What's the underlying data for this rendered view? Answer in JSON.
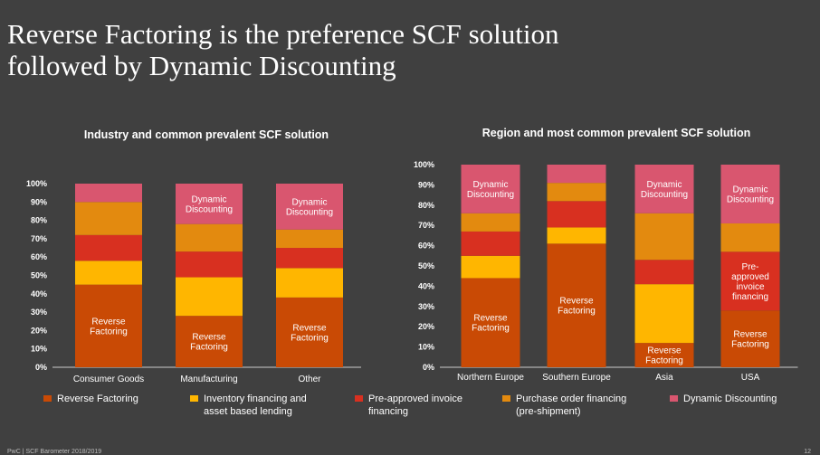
{
  "slide": {
    "title_line1": "Reverse Factoring is the preference SCF solution",
    "title_line2": "followed by Dynamic Discounting",
    "footer": "PwC | SCF Barometer 2018/2019",
    "page": "12"
  },
  "colors": {
    "reverse_factoring": "#C94A05",
    "inventory_financing": "#FFB600",
    "pre_approved": "#D83020",
    "purchase_order": "#E38A0F",
    "dynamic_discounting": "#D9566F",
    "axis": "#cccccc"
  },
  "legend": [
    {
      "key": "reverse_factoring",
      "line1": "Reverse Factoring",
      "line2": ""
    },
    {
      "key": "inventory_financing",
      "line1": "Inventory financing and",
      "line2": "asset based lending"
    },
    {
      "key": "pre_approved",
      "line1": "Pre-approved invoice",
      "line2": "financing"
    },
    {
      "key": "purchase_order",
      "line1": "Purchase order financing",
      "line2": "(pre-shipment)"
    },
    {
      "key": "dynamic_discounting",
      "line1": "Dynamic Discounting",
      "line2": ""
    }
  ],
  "chart_data": [
    {
      "type": "bar",
      "stacked": true,
      "title": "Industry and common prevalent SCF solution",
      "ylim": [
        0,
        100
      ],
      "yticks": [
        "0%",
        "10%",
        "20%",
        "30%",
        "40%",
        "50%",
        "60%",
        "70%",
        "80%",
        "90%",
        "100%"
      ],
      "categories": [
        "Consumer Goods",
        "Manufacturing",
        "Other"
      ],
      "series": [
        {
          "name": "Reverse Factoring",
          "key": "reverse_factoring",
          "values": [
            45,
            28,
            38
          ]
        },
        {
          "name": "Inventory financing and asset based lending",
          "key": "inventory_financing",
          "values": [
            13,
            21,
            16
          ]
        },
        {
          "name": "Pre-approved invoice financing",
          "key": "pre_approved",
          "values": [
            14,
            14,
            11
          ]
        },
        {
          "name": "Purchase order financing (pre-shipment)",
          "key": "purchase_order",
          "values": [
            18,
            15,
            10
          ]
        },
        {
          "name": "Dynamic Discounting",
          "key": "dynamic_discounting",
          "values": [
            10,
            22,
            25
          ]
        }
      ],
      "annotations": [
        {
          "category": 0,
          "series": 0,
          "lines": [
            "Reverse",
            "Factoring"
          ]
        },
        {
          "category": 1,
          "series": 0,
          "lines": [
            "Reverse",
            "Factoring"
          ]
        },
        {
          "category": 2,
          "series": 0,
          "lines": [
            "Reverse",
            "Factoring"
          ]
        },
        {
          "category": 1,
          "series": 4,
          "lines": [
            "Dynamic",
            "Discounting"
          ]
        },
        {
          "category": 2,
          "series": 4,
          "lines": [
            "Dynamic",
            "Discounting"
          ]
        }
      ]
    },
    {
      "type": "bar",
      "stacked": true,
      "title": "Region and most common prevalent SCF solution",
      "ylim": [
        0,
        100
      ],
      "yticks": [
        "0%",
        "10%",
        "20%",
        "30%",
        "40%",
        "50%",
        "60%",
        "70%",
        "80%",
        "90%",
        "100%"
      ],
      "categories": [
        "Northern Europe",
        "Southern Europe",
        "Asia",
        "USA"
      ],
      "series": [
        {
          "name": "Reverse Factoring",
          "key": "reverse_factoring",
          "values": [
            44,
            61,
            12,
            28
          ]
        },
        {
          "name": "Inventory financing and asset based lending",
          "key": "inventory_financing",
          "values": [
            11,
            8,
            29,
            0
          ]
        },
        {
          "name": "Pre-approved invoice financing",
          "key": "pre_approved",
          "values": [
            12,
            13,
            12,
            29
          ]
        },
        {
          "name": "Purchase order financing (pre-shipment)",
          "key": "purchase_order",
          "values": [
            9,
            9,
            23,
            14
          ]
        },
        {
          "name": "Dynamic Discounting",
          "key": "dynamic_discounting",
          "values": [
            24,
            9,
            24,
            29
          ]
        }
      ],
      "annotations": [
        {
          "category": 0,
          "series": 0,
          "lines": [
            "Reverse",
            "Factoring"
          ]
        },
        {
          "category": 1,
          "series": 0,
          "lines": [
            "Reverse",
            "Factoring"
          ]
        },
        {
          "category": 2,
          "series": 0,
          "lines": [
            "Reverse",
            "Factoring"
          ]
        },
        {
          "category": 3,
          "series": 0,
          "lines": [
            "Reverse",
            "Factoring"
          ]
        },
        {
          "category": 3,
          "series": 2,
          "lines": [
            "Pre-",
            "approved",
            "invoice",
            "financing"
          ]
        },
        {
          "category": 0,
          "series": 4,
          "lines": [
            "Dynamic",
            "Discounting"
          ]
        },
        {
          "category": 2,
          "series": 4,
          "lines": [
            "Dynamic",
            "Discounting"
          ]
        },
        {
          "category": 3,
          "series": 4,
          "lines": [
            "Dynamic",
            "Discounting"
          ]
        }
      ]
    }
  ]
}
